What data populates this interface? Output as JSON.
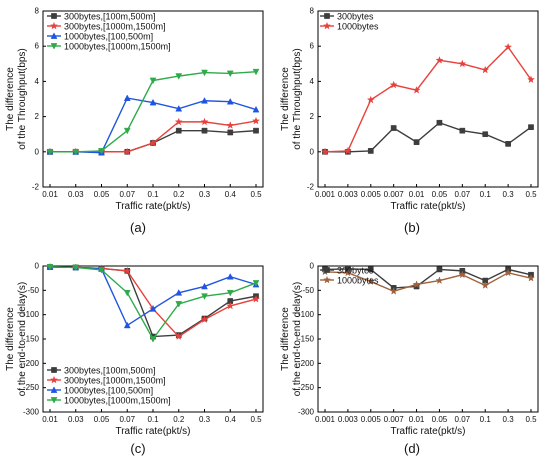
{
  "chart_data": [
    {
      "type": "line",
      "panel_label": "(a)",
      "xlabel": "Traffic rate(pkt/s)",
      "ylabel": [
        "The difference",
        "of  the Throughput(bps)"
      ],
      "categories": [
        "0.01",
        "0.03",
        "0.05",
        "0.07",
        "0.1",
        "0.2",
        "0.3",
        "0.4",
        "0.5"
      ],
      "ylim": [
        -2,
        8
      ],
      "yticks": [
        -2,
        0,
        2,
        4,
        6,
        8
      ],
      "legend_position": "top-left",
      "series": [
        {
          "name": "300bytes,[100m,500m]",
          "color": "#3d3d3d",
          "marker": "square",
          "values": [
            0,
            0,
            0,
            0,
            0.5,
            1.2,
            1.2,
            1.1,
            1.2
          ]
        },
        {
          "name": "300bytes,[1000m,1500m]",
          "color": "#e8413d",
          "marker": "star",
          "values": [
            0,
            0,
            0,
            0,
            0.5,
            1.7,
            1.7,
            1.5,
            1.75
          ]
        },
        {
          "name": "1000bytes,[100,500m]",
          "color": "#2055e0",
          "marker": "triangle-up",
          "values": [
            0,
            0,
            -0.05,
            3.05,
            2.8,
            2.45,
            2.9,
            2.85,
            2.4
          ]
        },
        {
          "name": "1000bytes,[1000m,1500m]",
          "color": "#2eaa4a",
          "marker": "triangle-down",
          "values": [
            0,
            0,
            0.05,
            1.2,
            4.05,
            4.3,
            4.5,
            4.45,
            4.55
          ]
        }
      ]
    },
    {
      "type": "line",
      "panel_label": "(b)",
      "xlabel": "Traffic rate(pkt/s)",
      "ylabel": [
        "The difference",
        "of  the Throughput(bps)"
      ],
      "categories": [
        "0.001",
        "0.003",
        "0.005",
        "0.007",
        "0.01",
        "0.05",
        "0.07",
        "0.1",
        "0.3",
        "0.5"
      ],
      "ylim": [
        -2,
        8
      ],
      "yticks": [
        -2,
        0,
        2,
        4,
        6,
        8
      ],
      "legend_position": "top-left",
      "series": [
        {
          "name": "300bytes",
          "color": "#3d3d3d",
          "marker": "square",
          "values": [
            0,
            0,
            0.05,
            1.35,
            0.55,
            1.65,
            1.2,
            1.0,
            0.45,
            1.4
          ]
        },
        {
          "name": "1000bytes",
          "color": "#e8413d",
          "marker": "star",
          "values": [
            0,
            0.05,
            2.95,
            3.8,
            3.5,
            5.2,
            5.0,
            4.65,
            5.95,
            4.1
          ]
        }
      ]
    },
    {
      "type": "line",
      "panel_label": "(c)",
      "xlabel": "Traffic rate(pkt/s)",
      "ylabel": [
        "The difference",
        "of the end-to-end delay(s)"
      ],
      "categories": [
        "0.01",
        "0.03",
        "0.05",
        "0.07",
        "0.1",
        "0.2",
        "0.3",
        "0.4",
        "0.5"
      ],
      "ylim": [
        -300,
        0
      ],
      "yticks": [
        -300,
        -250,
        -200,
        -150,
        -100,
        -50,
        0
      ],
      "legend_position": "bottom-left",
      "series": [
        {
          "name": "300bytes,[100m,500m]",
          "color": "#3d3d3d",
          "marker": "square",
          "values": [
            -2,
            -3,
            -5,
            -10,
            -145,
            -142,
            -108,
            -72,
            -62
          ]
        },
        {
          "name": "300bytes,[1000m,1500m]",
          "color": "#e8413d",
          "marker": "star",
          "values": [
            -2,
            -3,
            -5,
            -10,
            -88,
            -145,
            -110,
            -82,
            -68
          ]
        },
        {
          "name": "1000bytes,[100,500m]",
          "color": "#2055e0",
          "marker": "triangle-up",
          "values": [
            -2,
            -3,
            -6,
            -122,
            -88,
            -55,
            -42,
            -22,
            -38
          ]
        },
        {
          "name": "1000bytes,[1000m,1500m]",
          "color": "#2eaa4a",
          "marker": "triangle-down",
          "values": [
            -2,
            -3,
            -8,
            -55,
            -150,
            -78,
            -62,
            -55,
            -35
          ]
        }
      ]
    },
    {
      "type": "line",
      "panel_label": "(d)",
      "xlabel": "Traffic rate(pkt/s)",
      "ylabel": [
        "The difference",
        "of the end-to-end delay(s)"
      ],
      "categories": [
        "0.001",
        "0.003",
        "0.005",
        "0.007",
        "0.01",
        "0.05",
        "0.07",
        "0.1",
        "0.3",
        "0.5"
      ],
      "ylim": [
        -300,
        0
      ],
      "yticks": [
        -300,
        -250,
        -200,
        -150,
        -100,
        -50,
        0
      ],
      "legend_position": "top-left",
      "series": [
        {
          "name": "300bytes",
          "color": "#3d3d3d",
          "marker": "square",
          "values": [
            -7,
            -6,
            -7,
            -45,
            -42,
            -7,
            -10,
            -30,
            -7,
            -18
          ]
        },
        {
          "name": "1000bytes",
          "color": "#a0623c",
          "marker": "star",
          "values": [
            -12,
            -14,
            -32,
            -52,
            -38,
            -30,
            -18,
            -40,
            -14,
            -25
          ]
        }
      ]
    }
  ]
}
